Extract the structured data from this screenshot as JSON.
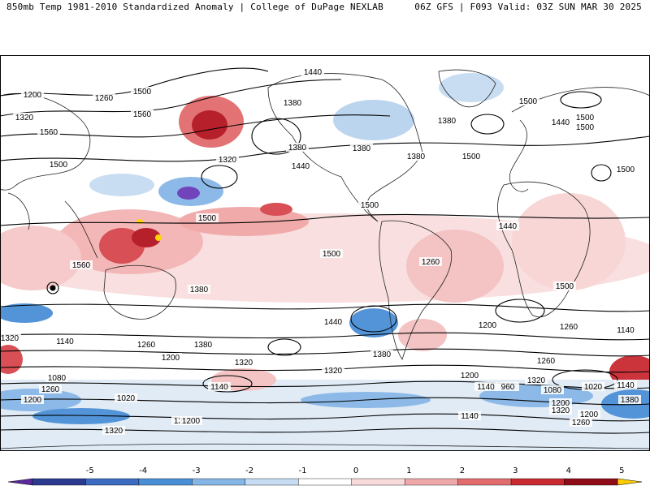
{
  "header": {
    "left": "850mb Temp 1981-2010 Standardized Anomaly | College of DuPage NEXLAB",
    "right": "06Z GFS | F093 Valid: 03Z SUN MAR 30 2025"
  },
  "map": {
    "contour_labels": [
      "1440",
      "1200",
      "1260",
      "1380",
      "1500",
      "1320",
      "1560",
      "1380",
      "1440",
      "1560",
      "1380",
      "1320",
      "1440",
      "1380",
      "1380",
      "1500",
      "1500",
      "1500",
      "1500",
      "1500",
      "1500",
      "1500",
      "1500",
      "1500",
      "1440",
      "1260",
      "1560",
      "1500",
      "1380",
      "1440",
      "1200",
      "1260",
      "1140",
      "1380",
      "1320",
      "1260",
      "1380",
      "1320",
      "1200",
      "1140",
      "1080",
      "1260",
      "1200",
      "1140",
      "1020",
      "1320",
      "1200",
      "1140",
      "1260",
      "1200",
      "1320",
      "1200",
      "1380",
      "1140",
      "1260",
      "1320",
      "960",
      "1080",
      "1020",
      "1200",
      "1140",
      "1260",
      "1320"
    ],
    "anomaly_colors": {
      "strong_neg": "#2b3a8f",
      "neg": "#4a8fd6",
      "weak_neg": "#b7d3ee",
      "weak_pos": "#f5c8c8",
      "pos": "#e8767a",
      "strong_pos": "#9e0e1c",
      "extreme_pos": "#ffd200",
      "extreme_neg": "#6a3ab8"
    }
  },
  "colorbar": {
    "ticks": [
      "-5",
      "-4",
      "-3",
      "-2",
      "-1",
      "0",
      "1",
      "2",
      "3",
      "4",
      "5"
    ],
    "colors": [
      "#5b2a9c",
      "#2b3a8f",
      "#3b6cc2",
      "#4a8fd6",
      "#86b6e6",
      "#c6dcf2",
      "#ffffff",
      "#f7dada",
      "#efa8aa",
      "#e26b6e",
      "#c92a31",
      "#8e0b18",
      "#ffcc00"
    ]
  }
}
